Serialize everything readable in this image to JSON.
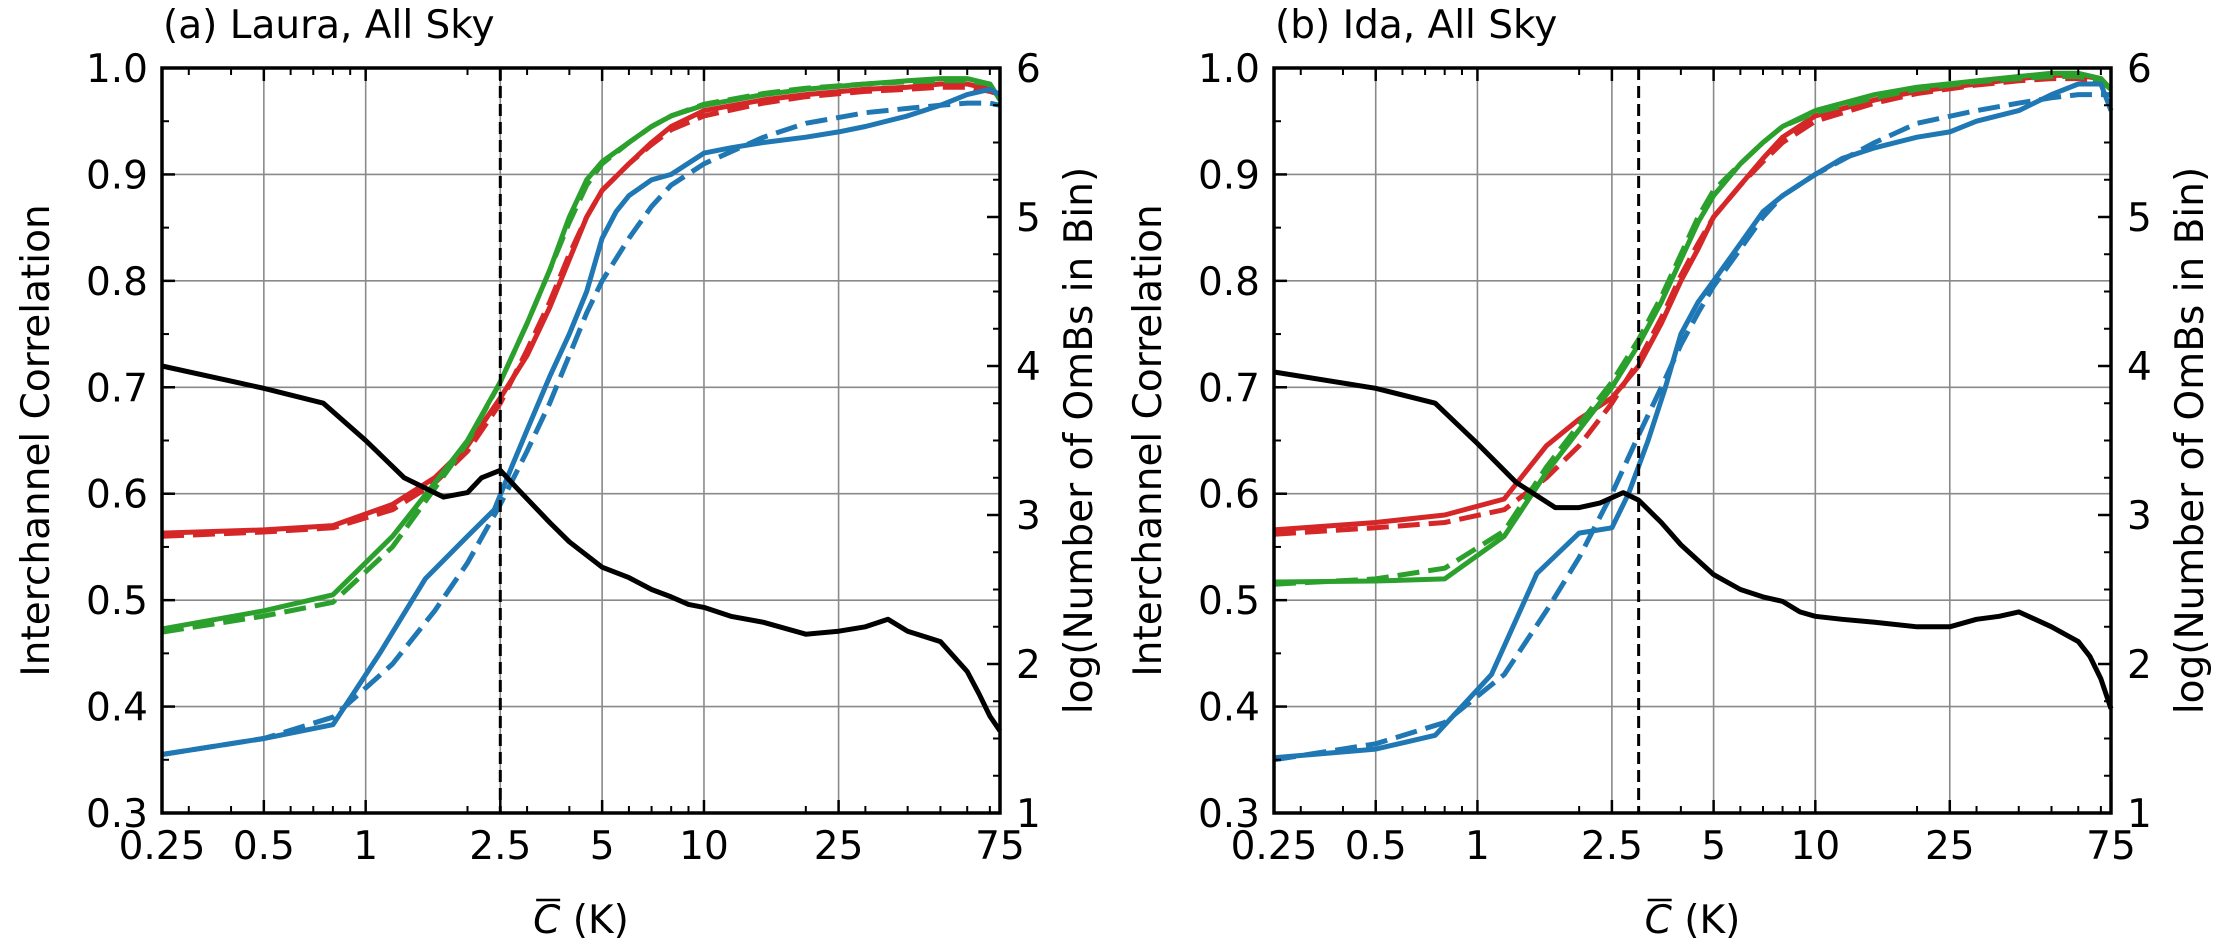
{
  "chart_data": [
    {
      "type": "line",
      "title": "(a) Laura, All Sky",
      "xlabel": "C̄ (K)",
      "xlabel_symbol": "C",
      "xlabel_unit": " (K)",
      "ylabel": "Interchannel Correlation",
      "y2label": "log(Number of OmBs in Bin)",
      "x_scale": "log",
      "xlim": [
        0.25,
        75
      ],
      "ylim": [
        0.3,
        1.0
      ],
      "y2lim": [
        1,
        6
      ],
      "xticks": [
        0.25,
        0.5,
        1,
        2.5,
        5,
        10,
        25,
        75
      ],
      "xtick_labels": [
        "0.25",
        "0.5",
        "1",
        "2.5",
        "5",
        "10",
        "25",
        "75"
      ],
      "yticks": [
        0.3,
        0.4,
        0.5,
        0.6,
        0.7,
        0.8,
        0.9,
        1.0
      ],
      "ytick_labels": [
        "0.3",
        "0.4",
        "0.5",
        "0.6",
        "0.7",
        "0.8",
        "0.9",
        "1.0"
      ],
      "y2ticks": [
        1,
        2,
        3,
        4,
        5,
        6
      ],
      "y2tick_labels": [
        "1",
        "2",
        "3",
        "4",
        "5",
        "6"
      ],
      "grid": true,
      "vline": 2.5,
      "series": [
        {
          "color": "#d62728",
          "style": "solid",
          "axis": "left",
          "x": [
            0.25,
            0.5,
            0.8,
            1.2,
            1.6,
            2.0,
            2.5,
            3.0,
            3.5,
            4.0,
            4.5,
            5.0,
            6.0,
            7.0,
            8.0,
            10,
            15,
            20,
            30,
            40,
            50,
            60,
            70,
            75
          ],
          "y": [
            0.563,
            0.566,
            0.57,
            0.59,
            0.615,
            0.645,
            0.69,
            0.73,
            0.775,
            0.82,
            0.86,
            0.885,
            0.91,
            0.93,
            0.945,
            0.96,
            0.97,
            0.975,
            0.98,
            0.982,
            0.985,
            0.985,
            0.98,
            0.975
          ]
        },
        {
          "color": "#d62728",
          "style": "dashed",
          "axis": "left",
          "x": [
            0.25,
            0.5,
            0.8,
            1.2,
            1.6,
            2.0,
            2.5,
            3.0,
            3.5,
            4.0,
            4.5,
            5.0,
            6.0,
            7.0,
            8.0,
            10,
            15,
            20,
            30,
            40,
            50,
            60,
            70,
            75
          ],
          "y": [
            0.56,
            0.564,
            0.568,
            0.585,
            0.61,
            0.64,
            0.685,
            0.735,
            0.78,
            0.825,
            0.86,
            0.885,
            0.91,
            0.928,
            0.942,
            0.955,
            0.967,
            0.973,
            0.978,
            0.98,
            0.982,
            0.982,
            0.978,
            0.975
          ]
        },
        {
          "color": "#2ca02c",
          "style": "solid",
          "axis": "left",
          "x": [
            0.25,
            0.5,
            0.8,
            1.2,
            1.6,
            2.0,
            2.5,
            3.0,
            3.5,
            4.0,
            4.5,
            5.0,
            6.0,
            7.0,
            8.0,
            10,
            15,
            20,
            30,
            40,
            50,
            60,
            70,
            75
          ],
          "y": [
            0.473,
            0.49,
            0.505,
            0.56,
            0.61,
            0.65,
            0.705,
            0.76,
            0.81,
            0.86,
            0.895,
            0.912,
            0.93,
            0.945,
            0.955,
            0.965,
            0.975,
            0.98,
            0.985,
            0.988,
            0.99,
            0.99,
            0.985,
            0.97
          ]
        },
        {
          "color": "#2ca02c",
          "style": "dashed",
          "axis": "left",
          "x": [
            0.25,
            0.5,
            0.8,
            1.2,
            1.6,
            2.0,
            2.5,
            3.0,
            3.5,
            4.0,
            4.5,
            5.0,
            6.0,
            7.0,
            8.0,
            10,
            15,
            20,
            30,
            40,
            50,
            60,
            70,
            75
          ],
          "y": [
            0.47,
            0.485,
            0.498,
            0.55,
            0.605,
            0.648,
            0.705,
            0.76,
            0.81,
            0.855,
            0.89,
            0.91,
            0.93,
            0.945,
            0.955,
            0.966,
            0.976,
            0.981,
            0.985,
            0.987,
            0.988,
            0.988,
            0.985,
            0.97
          ]
        },
        {
          "color": "#1f77b4",
          "style": "solid",
          "axis": "left",
          "x": [
            0.25,
            0.5,
            0.8,
            1.1,
            1.5,
            2.0,
            2.4,
            2.7,
            3.0,
            3.5,
            4.0,
            4.5,
            5.0,
            5.5,
            6.0,
            7.0,
            8.0,
            10,
            12,
            15,
            20,
            25,
            30,
            40,
            50,
            60,
            70,
            75
          ],
          "y": [
            0.355,
            0.37,
            0.383,
            0.45,
            0.52,
            0.56,
            0.585,
            0.625,
            0.66,
            0.71,
            0.75,
            0.79,
            0.84,
            0.865,
            0.88,
            0.895,
            0.9,
            0.92,
            0.925,
            0.93,
            0.935,
            0.94,
            0.945,
            0.955,
            0.965,
            0.975,
            0.98,
            0.975
          ]
        },
        {
          "color": "#1f77b4",
          "style": "dashed",
          "axis": "left",
          "x": [
            0.25,
            0.5,
            0.8,
            1.2,
            1.6,
            2.0,
            2.5,
            3.0,
            3.5,
            4.0,
            4.5,
            5.0,
            6.0,
            7.0,
            8.0,
            10,
            15,
            20,
            30,
            40,
            50,
            60,
            70,
            75
          ],
          "y": [
            0.355,
            0.37,
            0.39,
            0.44,
            0.49,
            0.535,
            0.59,
            0.64,
            0.685,
            0.73,
            0.77,
            0.8,
            0.84,
            0.87,
            0.89,
            0.91,
            0.935,
            0.948,
            0.958,
            0.962,
            0.965,
            0.967,
            0.967,
            0.965
          ]
        },
        {
          "color": "#000000",
          "style": "solid",
          "axis": "right",
          "x": [
            0.25,
            0.5,
            0.75,
            1.0,
            1.3,
            1.7,
            2.0,
            2.2,
            2.5,
            2.8,
            3.5,
            4.0,
            5.0,
            6.0,
            7.0,
            8.0,
            9.0,
            10,
            12,
            15,
            20,
            25,
            30,
            35,
            40,
            50,
            60,
            65,
            70,
            75
          ],
          "y": [
            4.0,
            3.85,
            3.75,
            3.5,
            3.25,
            3.12,
            3.15,
            3.25,
            3.3,
            3.18,
            2.95,
            2.82,
            2.65,
            2.58,
            2.5,
            2.45,
            2.4,
            2.38,
            2.32,
            2.28,
            2.2,
            2.22,
            2.25,
            2.3,
            2.22,
            2.15,
            1.95,
            1.8,
            1.65,
            1.55
          ]
        }
      ]
    },
    {
      "type": "line",
      "title": "(b) Ida, All Sky",
      "xlabel": "C̄ (K)",
      "xlabel_symbol": "C",
      "xlabel_unit": " (K)",
      "ylabel": "Interchannel Correlation",
      "y2label": "log(Number of OmBs in Bin)",
      "x_scale": "log",
      "xlim": [
        0.25,
        75
      ],
      "ylim": [
        0.3,
        1.0
      ],
      "y2lim": [
        1,
        6
      ],
      "xticks": [
        0.25,
        0.5,
        1,
        2.5,
        5,
        10,
        25,
        75
      ],
      "xtick_labels": [
        "0.25",
        "0.5",
        "1",
        "2.5",
        "5",
        "10",
        "25",
        "75"
      ],
      "yticks": [
        0.3,
        0.4,
        0.5,
        0.6,
        0.7,
        0.8,
        0.9,
        1.0
      ],
      "ytick_labels": [
        "0.3",
        "0.4",
        "0.5",
        "0.6",
        "0.7",
        "0.8",
        "0.9",
        "1.0"
      ],
      "y2ticks": [
        1,
        2,
        3,
        4,
        5,
        6
      ],
      "y2tick_labels": [
        "1",
        "2",
        "3",
        "4",
        "5",
        "6"
      ],
      "grid": true,
      "vline": 3.0,
      "series": [
        {
          "color": "#d62728",
          "style": "solid",
          "axis": "left",
          "x": [
            0.25,
            0.5,
            0.8,
            1.2,
            1.6,
            2.0,
            2.5,
            3.0,
            3.5,
            4.0,
            4.5,
            5.0,
            6.0,
            7.0,
            8.0,
            10,
            15,
            20,
            30,
            40,
            50,
            60,
            70,
            75
          ],
          "y": [
            0.566,
            0.573,
            0.58,
            0.595,
            0.645,
            0.67,
            0.69,
            0.72,
            0.76,
            0.8,
            0.83,
            0.86,
            0.89,
            0.915,
            0.935,
            0.955,
            0.97,
            0.978,
            0.985,
            0.99,
            0.993,
            0.993,
            0.99,
            0.98
          ]
        },
        {
          "color": "#d62728",
          "style": "dashed",
          "axis": "left",
          "x": [
            0.25,
            0.5,
            0.8,
            1.2,
            1.6,
            2.0,
            2.5,
            3.0,
            3.5,
            4.0,
            4.5,
            5.0,
            6.0,
            7.0,
            8.0,
            10,
            15,
            20,
            30,
            40,
            50,
            60,
            70,
            75
          ],
          "y": [
            0.562,
            0.568,
            0.573,
            0.585,
            0.615,
            0.645,
            0.685,
            0.725,
            0.765,
            0.805,
            0.835,
            0.86,
            0.89,
            0.912,
            0.93,
            0.95,
            0.967,
            0.976,
            0.984,
            0.988,
            0.99,
            0.99,
            0.988,
            0.98
          ]
        },
        {
          "color": "#2ca02c",
          "style": "solid",
          "axis": "left",
          "x": [
            0.25,
            0.5,
            0.8,
            1.2,
            1.6,
            2.0,
            2.5,
            3.0,
            3.5,
            4.0,
            4.5,
            5.0,
            6.0,
            7.0,
            8.0,
            10,
            15,
            20,
            30,
            40,
            50,
            60,
            70,
            75
          ],
          "y": [
            0.517,
            0.518,
            0.52,
            0.56,
            0.62,
            0.66,
            0.7,
            0.74,
            0.78,
            0.82,
            0.855,
            0.88,
            0.91,
            0.93,
            0.945,
            0.96,
            0.975,
            0.982,
            0.988,
            0.992,
            0.995,
            0.995,
            0.99,
            0.98
          ]
        },
        {
          "color": "#2ca02c",
          "style": "dashed",
          "axis": "left",
          "x": [
            0.25,
            0.5,
            0.8,
            1.2,
            1.6,
            2.0,
            2.5,
            3.0,
            3.5,
            4.0,
            4.5,
            5.0,
            6.0,
            7.0,
            8.0,
            10,
            15,
            20,
            30,
            40,
            50,
            60,
            70,
            75
          ],
          "y": [
            0.515,
            0.52,
            0.53,
            0.565,
            0.625,
            0.665,
            0.705,
            0.745,
            0.785,
            0.825,
            0.86,
            0.885,
            0.91,
            0.93,
            0.945,
            0.958,
            0.972,
            0.98,
            0.987,
            0.99,
            0.992,
            0.992,
            0.988,
            0.98
          ]
        },
        {
          "color": "#1f77b4",
          "style": "solid",
          "axis": "left",
          "x": [
            0.25,
            0.5,
            0.75,
            1.1,
            1.5,
            2.0,
            2.5,
            2.8,
            3.2,
            3.6,
            4.0,
            4.5,
            5.0,
            6.0,
            7.0,
            8.0,
            10,
            12,
            15,
            20,
            25,
            30,
            40,
            50,
            60,
            70,
            75
          ],
          "y": [
            0.352,
            0.36,
            0.373,
            0.43,
            0.525,
            0.563,
            0.568,
            0.6,
            0.65,
            0.7,
            0.75,
            0.78,
            0.8,
            0.835,
            0.865,
            0.88,
            0.9,
            0.915,
            0.925,
            0.935,
            0.94,
            0.95,
            0.96,
            0.975,
            0.985,
            0.985,
            0.96
          ]
        },
        {
          "color": "#1f77b4",
          "style": "dashed",
          "axis": "left",
          "x": [
            0.25,
            0.5,
            0.8,
            1.2,
            1.6,
            2.0,
            2.5,
            3.0,
            3.5,
            4.0,
            4.5,
            5.0,
            6.0,
            7.0,
            8.0,
            10,
            15,
            20,
            30,
            40,
            50,
            60,
            70,
            75
          ],
          "y": [
            0.35,
            0.365,
            0.385,
            0.43,
            0.49,
            0.54,
            0.6,
            0.655,
            0.7,
            0.74,
            0.77,
            0.795,
            0.83,
            0.86,
            0.88,
            0.9,
            0.93,
            0.948,
            0.96,
            0.967,
            0.972,
            0.975,
            0.975,
            0.975
          ]
        },
        {
          "color": "#000000",
          "style": "solid",
          "axis": "right",
          "x": [
            0.25,
            0.5,
            0.75,
            1.0,
            1.3,
            1.7,
            2.0,
            2.3,
            2.7,
            3.0,
            3.5,
            4.0,
            5.0,
            6.0,
            7.0,
            8.0,
            9.0,
            10,
            12,
            15,
            20,
            25,
            30,
            35,
            40,
            50,
            60,
            65,
            70,
            75
          ],
          "y": [
            3.96,
            3.85,
            3.75,
            3.48,
            3.22,
            3.05,
            3.05,
            3.08,
            3.15,
            3.1,
            2.95,
            2.8,
            2.6,
            2.5,
            2.45,
            2.42,
            2.35,
            2.32,
            2.3,
            2.28,
            2.25,
            2.25,
            2.3,
            2.32,
            2.35,
            2.25,
            2.15,
            2.05,
            1.9,
            1.7
          ]
        }
      ]
    }
  ]
}
